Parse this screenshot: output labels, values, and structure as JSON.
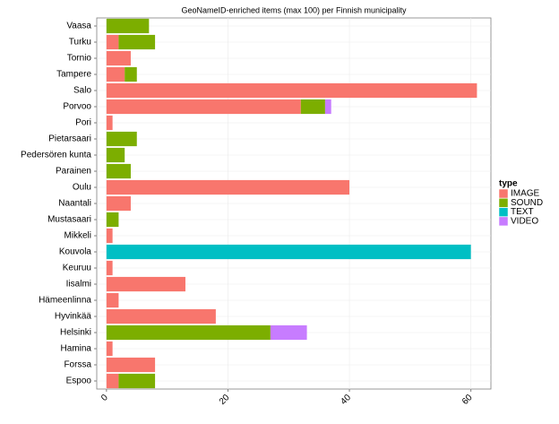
{
  "chart_data": {
    "type": "stacked-barh",
    "title": "GeoNameID-enriched items (max 100) per Finnish municipality",
    "legend_title": "type",
    "categories": [
      "Vaasa",
      "Turku",
      "Tornio",
      "Tampere",
      "Salo",
      "Porvoo",
      "Pori",
      "Pietarsaari",
      "Pedersören kunta",
      "Parainen",
      "Oulu",
      "Naantali",
      "Mustasaari",
      "Mikkeli",
      "Kouvola",
      "Keuruu",
      "Iisalmi",
      "Hämeenlinna",
      "Hyvinkää",
      "Helsinki",
      "Hamina",
      "Forssa",
      "Espoo"
    ],
    "series": [
      {
        "name": "IMAGE",
        "color": "#F8766D",
        "values": [
          0,
          2,
          4,
          3,
          61,
          32,
          1,
          0,
          0,
          0,
          40,
          4,
          0,
          1,
          0,
          1,
          13,
          2,
          18,
          0,
          1,
          8,
          2
        ]
      },
      {
        "name": "SOUND",
        "color": "#7CAE00",
        "values": [
          7,
          6,
          0,
          2,
          0,
          4,
          0,
          5,
          3,
          4,
          0,
          0,
          2,
          0,
          0,
          0,
          0,
          0,
          0,
          27,
          0,
          0,
          6
        ]
      },
      {
        "name": "TEXT",
        "color": "#00BFC4",
        "values": [
          0,
          0,
          0,
          0,
          0,
          0,
          0,
          0,
          0,
          0,
          0,
          0,
          0,
          0,
          60,
          0,
          0,
          0,
          0,
          0,
          0,
          0,
          0
        ]
      },
      {
        "name": "VIDEO",
        "color": "#C77CFF",
        "values": [
          0,
          0,
          0,
          0,
          0,
          1,
          0,
          0,
          0,
          0,
          0,
          0,
          0,
          0,
          0,
          0,
          0,
          0,
          0,
          6,
          0,
          0,
          0
        ]
      }
    ],
    "xlim": [
      -1.6,
      63.3
    ],
    "xticks": [
      0,
      20,
      40,
      60
    ],
    "grid": true
  }
}
